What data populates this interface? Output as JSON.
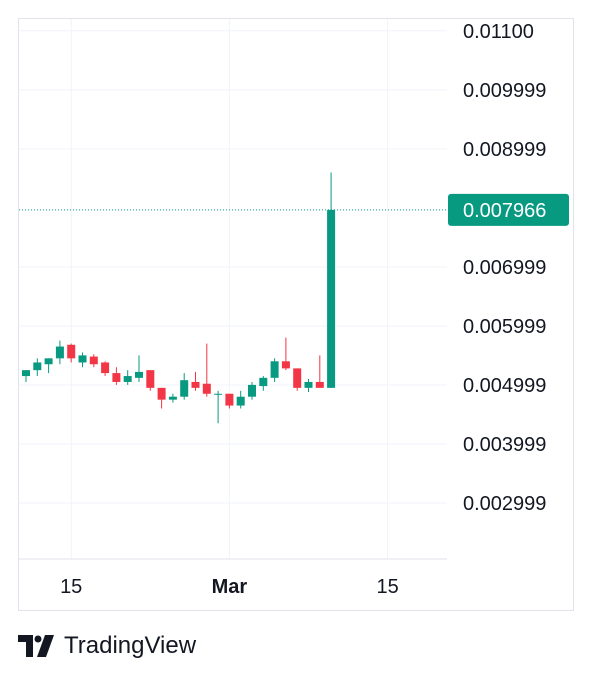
{
  "brand": {
    "name": "TradingView",
    "icon": "tradingview-logo-icon"
  },
  "colors": {
    "up": "#089981",
    "down": "#f23645",
    "grid": "#f0f3fa",
    "text": "#131722",
    "last_price_bg": "#089981"
  },
  "chart_data": {
    "type": "candlestick",
    "title": "",
    "y_ticks": [
      "0.01100",
      "0.009999",
      "0.008999",
      "0.006999",
      "0.005999",
      "0.004999",
      "0.003999",
      "0.002999"
    ],
    "y_tick_values": [
      0.011,
      0.009999,
      0.008999,
      0.006999,
      0.005999,
      0.004999,
      0.003999,
      0.002999
    ],
    "x_ticks": [
      {
        "label": "15",
        "index": 4,
        "bold": false
      },
      {
        "label": "Mar",
        "index": 18,
        "bold": true
      },
      {
        "label": "15",
        "index": 32,
        "bold": false
      }
    ],
    "last_price": "0.007966",
    "last_price_value": 0.007966,
    "ylim": [
      0.00205,
      0.0112
    ],
    "grid": true,
    "candles": [
      {
        "o": 0.00515,
        "h": 0.00525,
        "l": 0.00505,
        "c": 0.00525
      },
      {
        "o": 0.00525,
        "h": 0.00545,
        "l": 0.00515,
        "c": 0.00538
      },
      {
        "o": 0.00535,
        "h": 0.00545,
        "l": 0.0052,
        "c": 0.00545
      },
      {
        "o": 0.00545,
        "h": 0.00575,
        "l": 0.00535,
        "c": 0.00565
      },
      {
        "o": 0.00568,
        "h": 0.0057,
        "l": 0.00538,
        "c": 0.00545
      },
      {
        "o": 0.00538,
        "h": 0.00555,
        "l": 0.0053,
        "c": 0.0055
      },
      {
        "o": 0.00548,
        "h": 0.00552,
        "l": 0.0053,
        "c": 0.00535
      },
      {
        "o": 0.00538,
        "h": 0.0054,
        "l": 0.00515,
        "c": 0.0052
      },
      {
        "o": 0.0052,
        "h": 0.0053,
        "l": 0.005,
        "c": 0.00505
      },
      {
        "o": 0.00505,
        "h": 0.00525,
        "l": 0.005,
        "c": 0.00515
      },
      {
        "o": 0.00512,
        "h": 0.0055,
        "l": 0.00505,
        "c": 0.00522
      },
      {
        "o": 0.00525,
        "h": 0.00525,
        "l": 0.0049,
        "c": 0.00495
      },
      {
        "o": 0.00495,
        "h": 0.00495,
        "l": 0.0046,
        "c": 0.00475
      },
      {
        "o": 0.00475,
        "h": 0.00485,
        "l": 0.0047,
        "c": 0.0048
      },
      {
        "o": 0.0048,
        "h": 0.0052,
        "l": 0.00475,
        "c": 0.00508
      },
      {
        "o": 0.00505,
        "h": 0.00522,
        "l": 0.0049,
        "c": 0.00495
      },
      {
        "o": 0.00502,
        "h": 0.0057,
        "l": 0.0048,
        "c": 0.00485
      },
      {
        "o": 0.00485,
        "h": 0.0049,
        "l": 0.00435,
        "c": 0.00485
      },
      {
        "o": 0.00485,
        "h": 0.00485,
        "l": 0.0046,
        "c": 0.00465
      },
      {
        "o": 0.00465,
        "h": 0.0049,
        "l": 0.0046,
        "c": 0.0048
      },
      {
        "o": 0.0048,
        "h": 0.00505,
        "l": 0.00475,
        "c": 0.005
      },
      {
        "o": 0.00498,
        "h": 0.00515,
        "l": 0.0049,
        "c": 0.00512
      },
      {
        "o": 0.00512,
        "h": 0.00545,
        "l": 0.00505,
        "c": 0.0054
      },
      {
        "o": 0.0054,
        "h": 0.0058,
        "l": 0.00525,
        "c": 0.00528
      },
      {
        "o": 0.00528,
        "h": 0.00528,
        "l": 0.0049,
        "c": 0.00495
      },
      {
        "o": 0.00495,
        "h": 0.0051,
        "l": 0.00488,
        "c": 0.00505
      },
      {
        "o": 0.00505,
        "h": 0.0055,
        "l": 0.00495,
        "c": 0.00495
      },
      {
        "o": 0.00495,
        "h": 0.0086,
        "l": 0.00495,
        "c": 0.007966
      }
    ]
  }
}
